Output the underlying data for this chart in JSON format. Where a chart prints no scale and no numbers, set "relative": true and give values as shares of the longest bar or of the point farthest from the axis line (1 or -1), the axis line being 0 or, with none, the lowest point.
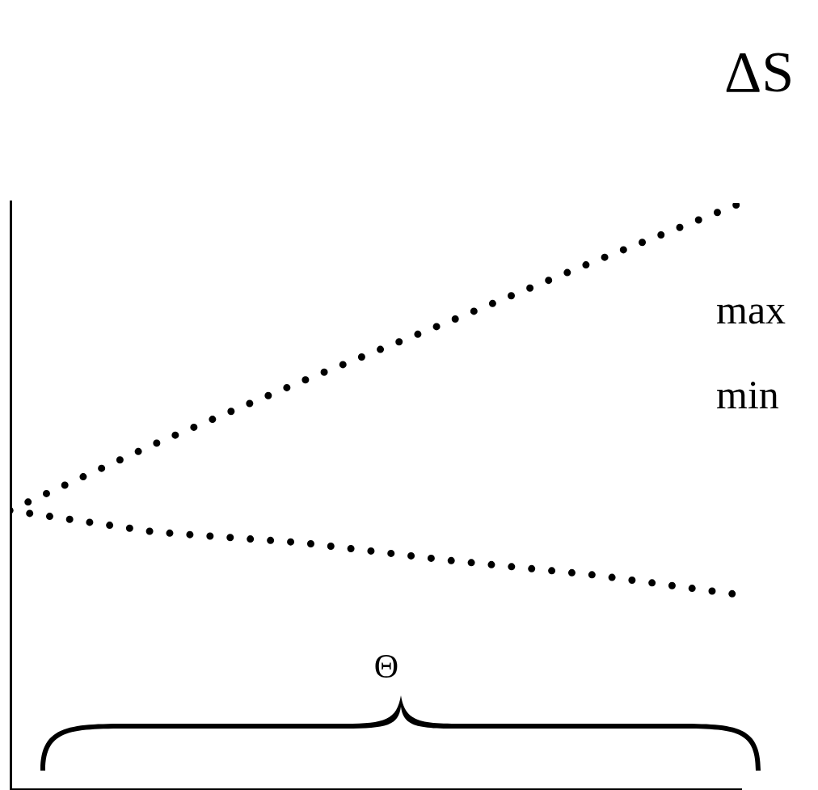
{
  "chart_data": {
    "type": "line",
    "relative": true,
    "categories": [
      null,
      null,
      null,
      null,
      null,
      null
    ],
    "series": [
      {
        "color": "#000000",
        "values": [
          0.477,
          0.591,
          0.697,
          0.798,
          0.901,
          1
        ]
      },
      {
        "color": "#000000",
        "values": [
          0.477,
          0.44,
          0.422,
          0.392,
          0.367,
          0.333
        ]
      }
    ],
    "line_style": "dotted",
    "marker": "none",
    "grid": false,
    "legend": false,
    "annotations": [
      "ΔS",
      "max",
      "min",
      "Θ"
    ]
  }
}
